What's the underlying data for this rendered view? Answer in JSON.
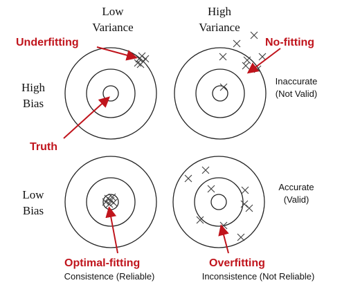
{
  "headers": {
    "low_variance": [
      "Low",
      "Variance"
    ],
    "high_variance": [
      "High",
      "Variance"
    ],
    "high_bias": [
      "High",
      "Bias"
    ],
    "low_bias": [
      "Low",
      "Bias"
    ]
  },
  "labels": {
    "underfitting": "Underfitting",
    "no_fitting": "No-fitting",
    "truth": "Truth",
    "optimal_fitting": "Optimal-fitting",
    "overfitting": "Overfitting",
    "inaccurate": "Inaccurate",
    "not_valid": "(Not Valid)",
    "accurate": "Accurate",
    "valid": "(Valid)",
    "consistence_reliable": "Consistence (Reliable)",
    "inconsistence_not_reliable": "Inconsistence (Not Reliable)"
  },
  "colors": {
    "label_red": "#c0141c",
    "ring": "#222222",
    "marker": "#444444"
  }
}
